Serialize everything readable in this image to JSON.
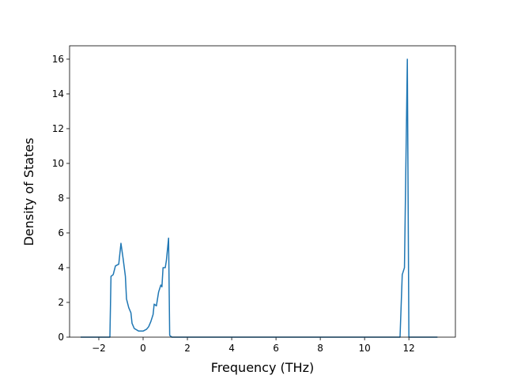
{
  "chart_data": {
    "type": "line",
    "x_label": "Frequency (THz)",
    "y_label": "Density of States",
    "series": [
      {
        "color": "#1f77b4",
        "x": [
          -2.82,
          -1.5,
          -1.45,
          -1.35,
          -1.25,
          -1.1,
          -1.0,
          -0.9,
          -0.8,
          -0.75,
          -0.65,
          -0.55,
          -0.5,
          -0.4,
          -0.2,
          0,
          0.15,
          0.25,
          0.35,
          0.45,
          0.5,
          0.6,
          0.7,
          0.8,
          0.85,
          0.9,
          1.0,
          1.05,
          1.15,
          1.2,
          1.3,
          11.6,
          11.7,
          11.8,
          11.93,
          12.0,
          13.29
        ],
        "values": [
          0,
          0,
          3.5,
          3.6,
          4.1,
          4.2,
          5.4,
          4.5,
          3.5,
          2.2,
          1.7,
          1.4,
          0.8,
          0.5,
          0.35,
          0.35,
          0.45,
          0.6,
          0.9,
          1.3,
          1.9,
          1.8,
          2.6,
          3.0,
          2.9,
          4.0,
          4.0,
          4.4,
          5.7,
          0.1,
          0,
          0,
          3.6,
          4.0,
          16.0,
          0,
          0
        ]
      }
    ],
    "xlim": [
      -3.32,
      14.1
    ],
    "ylim": [
      0,
      16.77
    ],
    "xticks": [
      {
        "value": -2,
        "label": "−2"
      },
      0,
      2,
      4,
      6,
      8,
      10,
      12
    ],
    "yticks": [
      0,
      2,
      4,
      6,
      8,
      10,
      12,
      14,
      16
    ]
  }
}
